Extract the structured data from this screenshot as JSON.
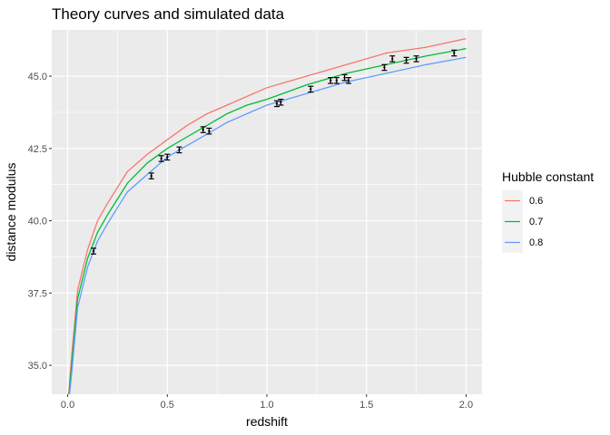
{
  "chart_data": {
    "type": "line",
    "title": "Theory curves and simulated data",
    "xlabel": "redshift",
    "ylabel": "distance modulus",
    "xlim": [
      -0.08,
      2.08
    ],
    "ylim": [
      34.0,
      46.6
    ],
    "x_ticks": [
      0.0,
      0.5,
      1.0,
      1.5,
      2.0
    ],
    "x_tick_labels": [
      "0.0",
      "0.5",
      "1.0",
      "1.5",
      "2.0"
    ],
    "y_ticks": [
      35.0,
      37.5,
      40.0,
      42.5,
      45.0
    ],
    "y_tick_labels": [
      "35.0",
      "37.5",
      "40.0",
      "42.5",
      "45.0"
    ],
    "grid": true,
    "legend": {
      "title": "Hubble constant",
      "position": "right",
      "entries": [
        {
          "label": "0.6",
          "color": "#f8766d"
        },
        {
          "label": "0.7",
          "color": "#00ba38"
        },
        {
          "label": "0.8",
          "color": "#619cff"
        }
      ]
    },
    "series": [
      {
        "name": "0.6",
        "color": "#f8766d",
        "x": [
          0.0,
          0.02,
          0.05,
          0.1,
          0.15,
          0.2,
          0.3,
          0.4,
          0.5,
          0.6,
          0.7,
          0.8,
          0.9,
          1.0,
          1.2,
          1.4,
          1.6,
          1.8,
          2.0
        ],
        "y": [
          33.6,
          35.3,
          37.6,
          39.0,
          40.0,
          40.6,
          41.7,
          42.3,
          42.8,
          43.3,
          43.7,
          44.0,
          44.3,
          44.6,
          45.0,
          45.4,
          45.8,
          46.0,
          46.3
        ]
      },
      {
        "name": "0.7",
        "color": "#00ba38",
        "x": [
          0.0,
          0.02,
          0.05,
          0.1,
          0.15,
          0.2,
          0.3,
          0.4,
          0.5,
          0.6,
          0.7,
          0.8,
          0.9,
          1.0,
          1.2,
          1.4,
          1.6,
          1.8,
          2.0
        ],
        "y": [
          33.5,
          35.0,
          37.3,
          38.7,
          39.6,
          40.2,
          41.3,
          42.0,
          42.5,
          42.9,
          43.3,
          43.7,
          44.0,
          44.2,
          44.7,
          45.1,
          45.4,
          45.7,
          45.95
        ]
      },
      {
        "name": "0.8",
        "color": "#619cff",
        "x": [
          0.0,
          0.02,
          0.05,
          0.1,
          0.15,
          0.2,
          0.3,
          0.4,
          0.5,
          0.6,
          0.7,
          0.8,
          0.9,
          1.0,
          1.2,
          1.4,
          1.6,
          1.8,
          2.0
        ],
        "y": [
          33.4,
          34.7,
          37.0,
          38.4,
          39.3,
          39.9,
          41.0,
          41.6,
          42.2,
          42.6,
          43.0,
          43.4,
          43.7,
          44.0,
          44.4,
          44.8,
          45.1,
          45.4,
          45.65
        ]
      }
    ],
    "points": {
      "x": [
        0.13,
        0.42,
        0.47,
        0.5,
        0.56,
        0.68,
        0.71,
        1.05,
        1.07,
        1.22,
        1.32,
        1.35,
        1.39,
        1.41,
        1.59,
        1.63,
        1.7,
        1.75,
        1.94
      ],
      "y": [
        38.95,
        41.55,
        42.15,
        42.2,
        42.45,
        43.15,
        43.1,
        44.05,
        44.1,
        44.55,
        44.85,
        44.85,
        44.95,
        44.85,
        45.3,
        45.6,
        45.55,
        45.6,
        45.8
      ],
      "err": [
        0.1,
        0.1,
        0.1,
        0.1,
        0.1,
        0.1,
        0.1,
        0.1,
        0.1,
        0.1,
        0.1,
        0.1,
        0.1,
        0.1,
        0.1,
        0.1,
        0.1,
        0.1,
        0.1
      ]
    }
  }
}
